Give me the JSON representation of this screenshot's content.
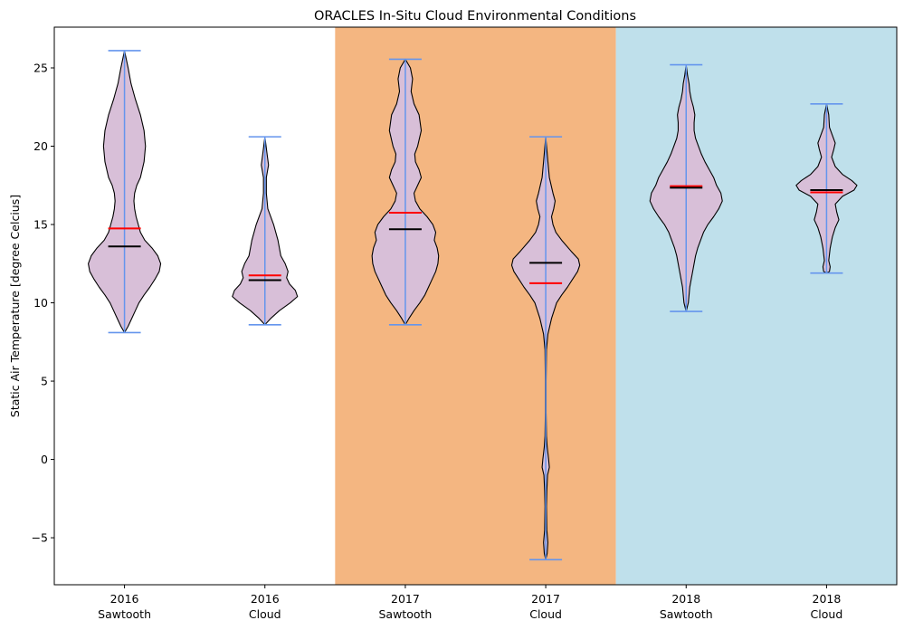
{
  "chart_data": {
    "type": "violin",
    "title": "ORACLES In-Situ Cloud Environmental Conditions",
    "ylabel": "Static Air Temperature [degree Celcius]",
    "xlabel": "",
    "ylim": [
      -8,
      27.6
    ],
    "yticks": [
      -5,
      0,
      5,
      10,
      15,
      20,
      25
    ],
    "ytick_labels": [
      "−5",
      "0",
      "5",
      "10",
      "15",
      "20",
      "25"
    ],
    "grid": false,
    "legend": "none",
    "colors": {
      "violin_fill": "#d8bfd8",
      "violin_edge": "#000000",
      "whisker": "#6495ed",
      "mean": "#ff0000",
      "median": "#000000",
      "bg_2017": "#f4b681",
      "bg_2018": "#bfe0eb"
    },
    "background_bands": [
      {
        "from_category": 3,
        "to_category": 4,
        "color": "#f4b681"
      },
      {
        "from_category": 5,
        "to_category": 6,
        "color": "#bfe0eb"
      }
    ],
    "categories": [
      {
        "year": "2016",
        "kind": "Sawtooth"
      },
      {
        "year": "2016",
        "kind": "Cloud"
      },
      {
        "year": "2017",
        "kind": "Sawtooth"
      },
      {
        "year": "2017",
        "kind": "Cloud"
      },
      {
        "year": "2018",
        "kind": "Sawtooth"
      },
      {
        "year": "2018",
        "kind": "Cloud"
      }
    ],
    "series": [
      {
        "min": 8.1,
        "max": 26.1,
        "mean": 14.75,
        "median": 13.6,
        "profile": [
          [
            8.1,
            0
          ],
          [
            8.5,
            0.05
          ],
          [
            9,
            0.1
          ],
          [
            9.5,
            0.15
          ],
          [
            10,
            0.2
          ],
          [
            10.5,
            0.27
          ],
          [
            11,
            0.35
          ],
          [
            11.5,
            0.42
          ],
          [
            12,
            0.48
          ],
          [
            12.5,
            0.5
          ],
          [
            13,
            0.46
          ],
          [
            13.5,
            0.38
          ],
          [
            14,
            0.28
          ],
          [
            14.5,
            0.22
          ],
          [
            15,
            0.19
          ],
          [
            15.5,
            0.16
          ],
          [
            16,
            0.14
          ],
          [
            16.5,
            0.13
          ],
          [
            17,
            0.14
          ],
          [
            17.5,
            0.17
          ],
          [
            18,
            0.22
          ],
          [
            19,
            0.27
          ],
          [
            20,
            0.29
          ],
          [
            21,
            0.27
          ],
          [
            22,
            0.22
          ],
          [
            23,
            0.15
          ],
          [
            24,
            0.09
          ],
          [
            25,
            0.05
          ],
          [
            26.1,
            0
          ]
        ]
      },
      {
        "min": 8.6,
        "max": 20.6,
        "mean": 11.75,
        "median": 11.45,
        "profile": [
          [
            8.6,
            0
          ],
          [
            9,
            0.08
          ],
          [
            9.5,
            0.2
          ],
          [
            10,
            0.35
          ],
          [
            10.4,
            0.45
          ],
          [
            10.8,
            0.42
          ],
          [
            11.2,
            0.34
          ],
          [
            11.6,
            0.3
          ],
          [
            12,
            0.32
          ],
          [
            12.5,
            0.28
          ],
          [
            13,
            0.22
          ],
          [
            14,
            0.18
          ],
          [
            15,
            0.12
          ],
          [
            15.5,
            0.08
          ],
          [
            16,
            0.04
          ],
          [
            17,
            0.02
          ],
          [
            18,
            0.02
          ],
          [
            18.8,
            0.05
          ],
          [
            19.5,
            0.03
          ],
          [
            20.6,
            0
          ]
        ]
      },
      {
        "min": 8.6,
        "max": 25.55,
        "mean": 15.75,
        "median": 14.7,
        "profile": [
          [
            8.6,
            0
          ],
          [
            9,
            0.05
          ],
          [
            9.5,
            0.12
          ],
          [
            10,
            0.2
          ],
          [
            10.5,
            0.27
          ],
          [
            11,
            0.32
          ],
          [
            11.5,
            0.37
          ],
          [
            12,
            0.42
          ],
          [
            12.5,
            0.45
          ],
          [
            13,
            0.46
          ],
          [
            13.5,
            0.44
          ],
          [
            14,
            0.4
          ],
          [
            14.5,
            0.42
          ],
          [
            15,
            0.38
          ],
          [
            15.5,
            0.3
          ],
          [
            16,
            0.2
          ],
          [
            16.5,
            0.14
          ],
          [
            17,
            0.12
          ],
          [
            17.5,
            0.17
          ],
          [
            18,
            0.22
          ],
          [
            18.5,
            0.19
          ],
          [
            19,
            0.14
          ],
          [
            19.5,
            0.13
          ],
          [
            20,
            0.17
          ],
          [
            21,
            0.22
          ],
          [
            22,
            0.19
          ],
          [
            22.7,
            0.12
          ],
          [
            23.5,
            0.08
          ],
          [
            24.3,
            0.1
          ],
          [
            25,
            0.07
          ],
          [
            25.55,
            0
          ]
        ]
      },
      {
        "min": -6.4,
        "max": 20.6,
        "mean": 11.25,
        "median": 12.55,
        "profile": [
          [
            -6.4,
            0
          ],
          [
            -6,
            0.02
          ],
          [
            -5.3,
            0.03
          ],
          [
            -4.5,
            0.015
          ],
          [
            -3,
            0.01
          ],
          [
            -2,
            0.015
          ],
          [
            -1,
            0.025
          ],
          [
            -0.5,
            0.05
          ],
          [
            0,
            0.04
          ],
          [
            0.8,
            0.02
          ],
          [
            1.5,
            0.01
          ],
          [
            3,
            0.005
          ],
          [
            5,
            0.005
          ],
          [
            7,
            0.01
          ],
          [
            8,
            0.03
          ],
          [
            9,
            0.08
          ],
          [
            10,
            0.15
          ],
          [
            10.5,
            0.22
          ],
          [
            11,
            0.3
          ],
          [
            11.5,
            0.37
          ],
          [
            12,
            0.44
          ],
          [
            12.4,
            0.47
          ],
          [
            12.8,
            0.45
          ],
          [
            13.3,
            0.35
          ],
          [
            14,
            0.22
          ],
          [
            14.5,
            0.14
          ],
          [
            15,
            0.1
          ],
          [
            15.5,
            0.08
          ],
          [
            16,
            0.11
          ],
          [
            16.5,
            0.13
          ],
          [
            17,
            0.1
          ],
          [
            18,
            0.05
          ],
          [
            19,
            0.03
          ],
          [
            20.6,
            0
          ]
        ]
      },
      {
        "min": 9.45,
        "max": 25.2,
        "mean": 17.45,
        "median": 17.35,
        "profile": [
          [
            9.45,
            0
          ],
          [
            10,
            0.03
          ],
          [
            11,
            0.05
          ],
          [
            12,
            0.09
          ],
          [
            13,
            0.13
          ],
          [
            13.5,
            0.16
          ],
          [
            14,
            0.2
          ],
          [
            14.5,
            0.24
          ],
          [
            15,
            0.3
          ],
          [
            15.5,
            0.38
          ],
          [
            16,
            0.45
          ],
          [
            16.5,
            0.5
          ],
          [
            17,
            0.48
          ],
          [
            17.5,
            0.42
          ],
          [
            18,
            0.38
          ],
          [
            18.5,
            0.32
          ],
          [
            19,
            0.26
          ],
          [
            19.5,
            0.21
          ],
          [
            20,
            0.17
          ],
          [
            20.5,
            0.13
          ],
          [
            21,
            0.11
          ],
          [
            21.5,
            0.11
          ],
          [
            22,
            0.12
          ],
          [
            22.5,
            0.1
          ],
          [
            23,
            0.07
          ],
          [
            23.5,
            0.05
          ],
          [
            24,
            0.04
          ],
          [
            24.5,
            0.02
          ],
          [
            25.2,
            0
          ]
        ]
      },
      {
        "min": 11.9,
        "max": 22.7,
        "mean": 17.05,
        "median": 17.2,
        "profile": [
          [
            11.9,
            0
          ],
          [
            12,
            0.04
          ],
          [
            12.3,
            0.05
          ],
          [
            12.7,
            0.03
          ],
          [
            13.5,
            0.05
          ],
          [
            14.2,
            0.08
          ],
          [
            14.8,
            0.12
          ],
          [
            15.3,
            0.17
          ],
          [
            15.8,
            0.14
          ],
          [
            16.3,
            0.12
          ],
          [
            16.8,
            0.22
          ],
          [
            17.2,
            0.38
          ],
          [
            17.5,
            0.42
          ],
          [
            17.8,
            0.35
          ],
          [
            18.2,
            0.22
          ],
          [
            18.7,
            0.12
          ],
          [
            19.3,
            0.07
          ],
          [
            19.8,
            0.1
          ],
          [
            20.2,
            0.12
          ],
          [
            20.7,
            0.08
          ],
          [
            21.2,
            0.04
          ],
          [
            22,
            0.03
          ],
          [
            22.7,
            0
          ]
        ]
      }
    ]
  }
}
